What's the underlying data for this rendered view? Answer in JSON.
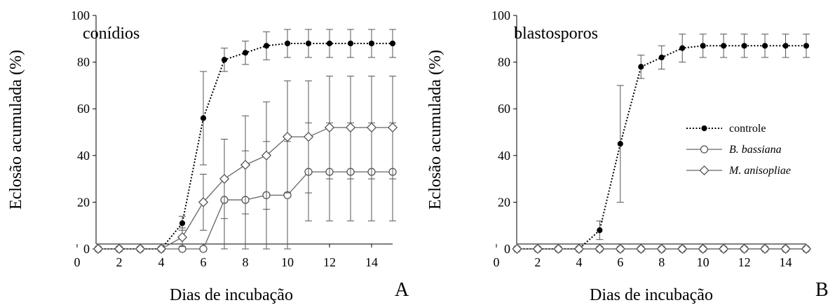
{
  "chart_data": [
    {
      "type": "line",
      "panel_label": "A",
      "inset_title": "conídios",
      "xlabel": "Dias de incubação",
      "ylabel": "Eclosão acumulada (%)",
      "xlim": [
        0,
        15
      ],
      "ylim": [
        0,
        100
      ],
      "xticks": [
        "0",
        "2",
        "4",
        "6",
        "8",
        "10",
        "12",
        "14"
      ],
      "yticks": [
        "0",
        "20",
        "40",
        "60",
        "80",
        "100"
      ],
      "grid": false,
      "legend": "none",
      "x": [
        1,
        2,
        3,
        4,
        5,
        6,
        7,
        8,
        9,
        10,
        11,
        12,
        13,
        14,
        15
      ],
      "series": [
        {
          "name": "controle",
          "style": "dotted",
          "marker": "filled-circle",
          "values": [
            0,
            0,
            0,
            0,
            11,
            56,
            81,
            84,
            87,
            88,
            88,
            88,
            88,
            88,
            88
          ],
          "errors": [
            0,
            0,
            0,
            0,
            3,
            20,
            5,
            5,
            6,
            6,
            6,
            6,
            6,
            6,
            6
          ]
        },
        {
          "name": "B. bassiana",
          "style": "solid",
          "marker": "open-circle",
          "values": [
            0,
            0,
            0,
            0,
            0,
            0,
            21,
            21,
            23,
            23,
            33,
            33,
            33,
            33,
            33
          ],
          "errors": [
            0,
            0,
            0,
            0,
            0,
            0,
            26,
            21,
            23,
            23,
            21,
            21,
            21,
            21,
            21
          ]
        },
        {
          "name": "M. anisopliae",
          "style": "solid",
          "marker": "open-diamond",
          "values": [
            0,
            0,
            0,
            0,
            5,
            20,
            30,
            36,
            40,
            48,
            48,
            52,
            52,
            52,
            52
          ],
          "errors": [
            0,
            0,
            0,
            0,
            4,
            12,
            17,
            21,
            23,
            24,
            24,
            22,
            22,
            22,
            22
          ]
        }
      ]
    },
    {
      "type": "line",
      "panel_label": "B",
      "inset_title": "blastosporos",
      "xlabel": "Dias de incubação",
      "ylabel": "Eclosão acumulada (%)",
      "xlim": [
        0,
        15
      ],
      "ylim": [
        0,
        100
      ],
      "xticks": [
        "0",
        "2",
        "4",
        "6",
        "8",
        "10",
        "12",
        "14"
      ],
      "yticks": [
        "0",
        "20",
        "40",
        "60",
        "80",
        "100"
      ],
      "grid": false,
      "legend": "right",
      "x": [
        1,
        2,
        3,
        4,
        5,
        6,
        7,
        8,
        9,
        10,
        11,
        12,
        13,
        14,
        15
      ],
      "series": [
        {
          "name": "controle",
          "style": "dotted",
          "marker": "filled-circle",
          "values": [
            0,
            0,
            0,
            0,
            8,
            45,
            78,
            82,
            86,
            87,
            87,
            87,
            87,
            87,
            87
          ],
          "errors": [
            0,
            0,
            0,
            0,
            4,
            25,
            5,
            5,
            6,
            5,
            5,
            5,
            5,
            5,
            5
          ]
        },
        {
          "name": "B. bassiana",
          "style": "solid",
          "marker": "open-circle",
          "values": [
            0,
            0,
            0,
            0,
            0,
            0,
            0,
            0,
            0,
            0,
            0,
            0,
            0,
            0,
            0
          ],
          "errors": [
            0,
            0,
            0,
            0,
            0,
            0,
            0,
            0,
            0,
            0,
            0,
            0,
            0,
            0,
            0
          ]
        },
        {
          "name": "M. anisopliae",
          "style": "solid",
          "marker": "open-diamond",
          "values": [
            0,
            0,
            0,
            0,
            0,
            0,
            0,
            0,
            0,
            0,
            0,
            0,
            0,
            0,
            0
          ],
          "errors": [
            0,
            0,
            0,
            0,
            0,
            0,
            0,
            0,
            0,
            0,
            0,
            0,
            0,
            0,
            0
          ]
        }
      ]
    }
  ]
}
